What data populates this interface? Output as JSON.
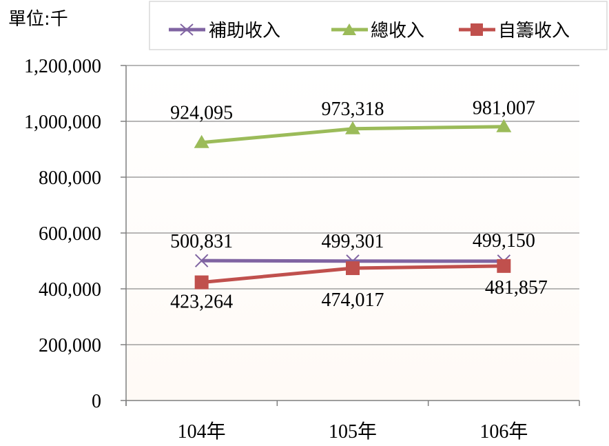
{
  "unit_label": "單位:千",
  "chart_data": {
    "type": "line",
    "categories": [
      "104年",
      "105年",
      "106年"
    ],
    "series": [
      {
        "name": "補助收入",
        "values": [
          500831,
          499301,
          499150
        ],
        "color": "#8064a2",
        "marker": "x",
        "labels": [
          "500,831",
          "499,301",
          "499,150"
        ]
      },
      {
        "name": "總收入",
        "values": [
          924095,
          973318,
          981007
        ],
        "color": "#9bbb59",
        "marker": "triangle",
        "labels": [
          "924,095",
          "973,318",
          "981,007"
        ]
      },
      {
        "name": "自籌收入",
        "values": [
          423264,
          474017,
          481857
        ],
        "color": "#c0504d",
        "marker": "square",
        "labels": [
          "423,264",
          "474,017",
          "481,857"
        ]
      }
    ],
    "y_ticks": [
      "0",
      "200,000",
      "400,000",
      "600,000",
      "800,000",
      "1,000,000",
      "1,200,000"
    ],
    "y_tick_values": [
      0,
      200000,
      400000,
      600000,
      800000,
      1000000,
      1200000
    ],
    "ylim": [
      0,
      1200000
    ],
    "grid": true,
    "legend_position": "top-right"
  }
}
